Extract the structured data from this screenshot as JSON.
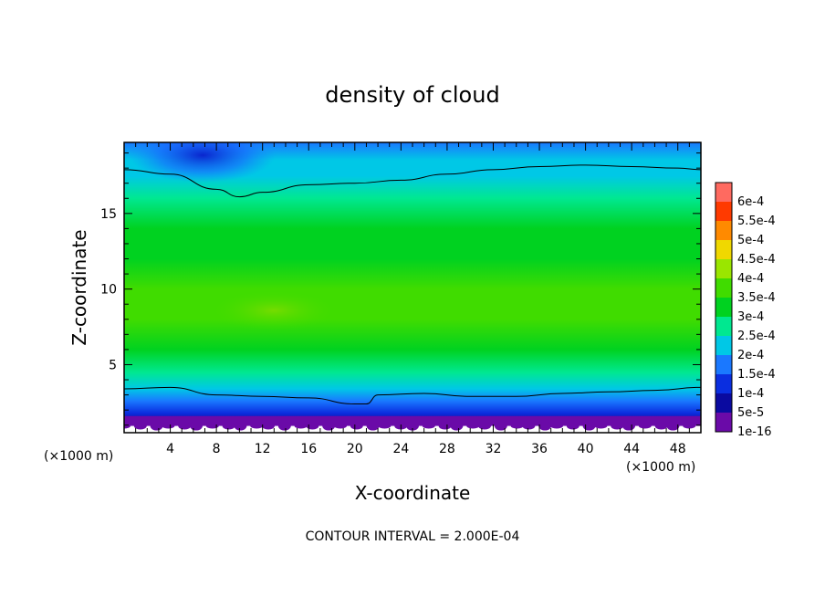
{
  "chart_data": {
    "type": "heatmap",
    "title": "density of cloud",
    "xlabel": "X-coordinate",
    "ylabel": "Z-coordinate",
    "x_unit": "(×1000 m)",
    "xlim": [
      0,
      50
    ],
    "ylim": [
      0.5,
      19.7
    ],
    "x_ticks": [
      4,
      8,
      12,
      16,
      20,
      24,
      28,
      32,
      36,
      40,
      44,
      48
    ],
    "y_ticks": [
      5,
      10,
      15
    ],
    "colorbar": {
      "levels": [
        "1e-16",
        "5e-5",
        "1e-4",
        "1.5e-4",
        "2e-4",
        "2.5e-4",
        "3e-4",
        "3.5e-4",
        "4e-4",
        "4.5e-4",
        "5e-4",
        "5.5e-4",
        "6e-4"
      ],
      "colors": [
        "#6a0aa8",
        "#0a0aa0",
        "#0a2ee0",
        "#1a78ff",
        "#00c8e6",
        "#00e890",
        "#00d220",
        "#40dc00",
        "#9ae600",
        "#f0d800",
        "#ff8a00",
        "#ff3a00",
        "#ff6a60",
        "#ffa0a0"
      ]
    },
    "profile_z": [
      0.8,
      1.2,
      1.8,
      2.6,
      3.4,
      4.5,
      6,
      8,
      10,
      12,
      14,
      16,
      17.5,
      18.5,
      19.7
    ],
    "profile_density": [
      1e-16,
      3e-05,
      7e-05,
      0.00012,
      0.00018,
      0.00023,
      0.00028,
      0.00032,
      0.0003,
      0.00029,
      0.00026,
      0.00022,
      0.00019,
      0.00015,
      0.00012
    ],
    "contour_lower_z": [
      [
        0,
        3.4
      ],
      [
        4,
        3.5
      ],
      [
        8,
        3.0
      ],
      [
        12,
        2.9
      ],
      [
        16,
        2.8
      ],
      [
        20,
        2.4
      ],
      [
        21,
        2.4
      ],
      [
        22,
        3.0
      ],
      [
        26,
        3.1
      ],
      [
        30,
        2.9
      ],
      [
        34,
        2.9
      ],
      [
        38,
        3.1
      ],
      [
        42,
        3.2
      ],
      [
        46,
        3.3
      ],
      [
        50,
        3.5
      ]
    ],
    "contour_upper_z": [
      [
        0,
        17.9
      ],
      [
        4,
        17.6
      ],
      [
        8,
        16.6
      ],
      [
        10,
        16.1
      ],
      [
        12,
        16.4
      ],
      [
        16,
        16.9
      ],
      [
        20,
        17.0
      ],
      [
        24,
        17.2
      ],
      [
        28,
        17.6
      ],
      [
        32,
        17.9
      ],
      [
        36,
        18.1
      ],
      [
        40,
        18.2
      ],
      [
        44,
        18.1
      ],
      [
        48,
        18.0
      ],
      [
        50,
        17.9
      ]
    ],
    "contour_interval_text": "CONTOUR INTERVAL = 2.000E-04"
  }
}
